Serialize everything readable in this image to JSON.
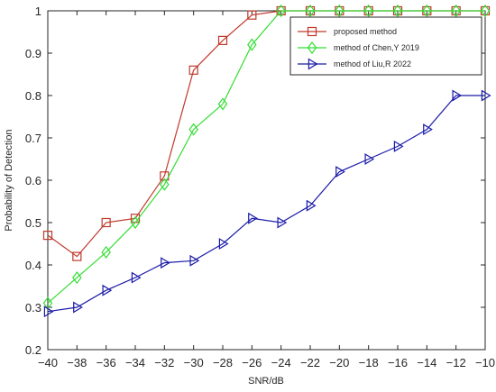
{
  "chart_data": {
    "type": "line",
    "title": "",
    "xlabel": "SNR/dB",
    "ylabel": "Probability of Detection",
    "xlim": [
      -40,
      -10
    ],
    "ylim": [
      0.2,
      1
    ],
    "xticks": [
      -40,
      -38,
      -36,
      -34,
      -32,
      -30,
      -28,
      -26,
      -24,
      -22,
      -20,
      -18,
      -16,
      -14,
      -12,
      -10
    ],
    "xtick_labels": [
      "−40",
      "−38",
      "−36",
      "−34",
      "−32",
      "−30",
      "−28",
      "−26",
      "−24",
      "−22",
      "−20",
      "−18",
      "−16",
      "−14",
      "−12",
      "−10"
    ],
    "yticks": [
      0.2,
      0.3,
      0.4,
      0.5,
      0.6,
      0.7,
      0.8,
      0.9,
      1
    ],
    "ytick_labels": [
      "0.2",
      "0.3",
      "0.4",
      "0.5",
      "0.6",
      "0.7",
      "0.8",
      "0.9",
      "1"
    ],
    "grid": false,
    "legend_position": "top-right",
    "series": [
      {
        "name": "proposed method",
        "color": "#c0392b",
        "marker": "square",
        "x": [
          -40,
          -38,
          -36,
          -34,
          -32,
          -30,
          -28,
          -26,
          -24,
          -22,
          -20,
          -18,
          -16,
          -14,
          -12,
          -10
        ],
        "y": [
          0.47,
          0.42,
          0.5,
          0.51,
          0.61,
          0.86,
          0.93,
          0.99,
          1.0,
          1.0,
          1.0,
          1.0,
          1.0,
          1.0,
          1.0,
          1.0
        ]
      },
      {
        "name": "method of Chen,Y 2019",
        "color": "#33dd33",
        "marker": "diamond",
        "x": [
          -40,
          -38,
          -36,
          -34,
          -32,
          -30,
          -28,
          -26,
          -24,
          -22,
          -20,
          -18,
          -16,
          -14,
          -12,
          -10
        ],
        "y": [
          0.31,
          0.37,
          0.43,
          0.5,
          0.59,
          0.72,
          0.78,
          0.92,
          1.0,
          1.0,
          1.0,
          1.0,
          1.0,
          1.0,
          1.0,
          1.0
        ]
      },
      {
        "name": "method of Liu,R 2022",
        "color": "#1a1aa8",
        "marker": "triangle-right",
        "x": [
          -40,
          -38,
          -36,
          -34,
          -32,
          -30,
          -28,
          -26,
          -24,
          -22,
          -20,
          -18,
          -16,
          -14,
          -12,
          -10
        ],
        "y": [
          0.29,
          0.3,
          0.34,
          0.37,
          0.405,
          0.41,
          0.45,
          0.51,
          0.5,
          0.54,
          0.62,
          0.65,
          0.68,
          0.72,
          0.8,
          0.8
        ]
      }
    ]
  }
}
